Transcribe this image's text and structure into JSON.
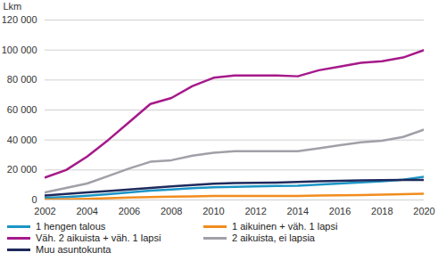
{
  "chart_data": {
    "type": "line",
    "x": [
      2002,
      2003,
      2004,
      2005,
      2006,
      2007,
      2008,
      2009,
      2010,
      2011,
      2012,
      2013,
      2014,
      2015,
      2016,
      2017,
      2018,
      2019,
      2020
    ],
    "xlim": [
      2002,
      2020
    ],
    "xticks": [
      2002,
      2004,
      2006,
      2008,
      2010,
      2012,
      2014,
      2016,
      2018,
      2020
    ],
    "ylabel": "Lkm",
    "ylim": [
      0,
      120000
    ],
    "yticks": [
      0,
      {
        "value": 20000,
        "label": "20 000"
      },
      {
        "value": 40000,
        "label": "40 000"
      },
      {
        "value": 60000,
        "label": "60 000"
      },
      {
        "value": 80000,
        "label": "80 000"
      },
      {
        "value": 100000,
        "label": "100 000"
      },
      {
        "value": 120000,
        "label": "120 000"
      }
    ],
    "grid": true,
    "legend": "bottom",
    "series": [
      {
        "name": "1 hengen talous",
        "color": "#1b95c6",
        "values": [
          1500,
          2000,
          2800,
          3800,
          5000,
          6200,
          7000,
          7800,
          8500,
          8800,
          9000,
          9300,
          9500,
          10200,
          11000,
          11800,
          12500,
          13500,
          15500
        ]
      },
      {
        "name": "1 aikuinen + väh. 1 lapsi",
        "color": "#f28c1e",
        "values": [
          300,
          500,
          800,
          1200,
          1600,
          2000,
          2200,
          2400,
          2600,
          2700,
          2700,
          2700,
          2700,
          2900,
          3100,
          3300,
          3500,
          3800,
          4200
        ]
      },
      {
        "name": "Väh. 2 aikuista + väh. 1 lapsi",
        "color": "#a6198a",
        "values": [
          15000,
          20000,
          29000,
          40000,
          52000,
          64000,
          68000,
          76000,
          81500,
          83000,
          83000,
          83000,
          82500,
          86500,
          89000,
          91500,
          92500,
          95000,
          100000
        ]
      },
      {
        "name": "2 aikuista, ei lapsia",
        "color": "#a0a0a8",
        "values": [
          5000,
          8000,
          11000,
          16000,
          21000,
          25500,
          26500,
          29500,
          31500,
          32500,
          32500,
          32500,
          32500,
          34500,
          36500,
          38500,
          39500,
          42000,
          47000
        ]
      },
      {
        "name": "Muu asuntokunta",
        "color": "#1f2a5c",
        "values": [
          3000,
          4000,
          5000,
          6000,
          7000,
          8000,
          9000,
          10000,
          10800,
          11300,
          11500,
          11600,
          12000,
          12500,
          12800,
          13000,
          13200,
          13300,
          13400
        ]
      }
    ]
  }
}
